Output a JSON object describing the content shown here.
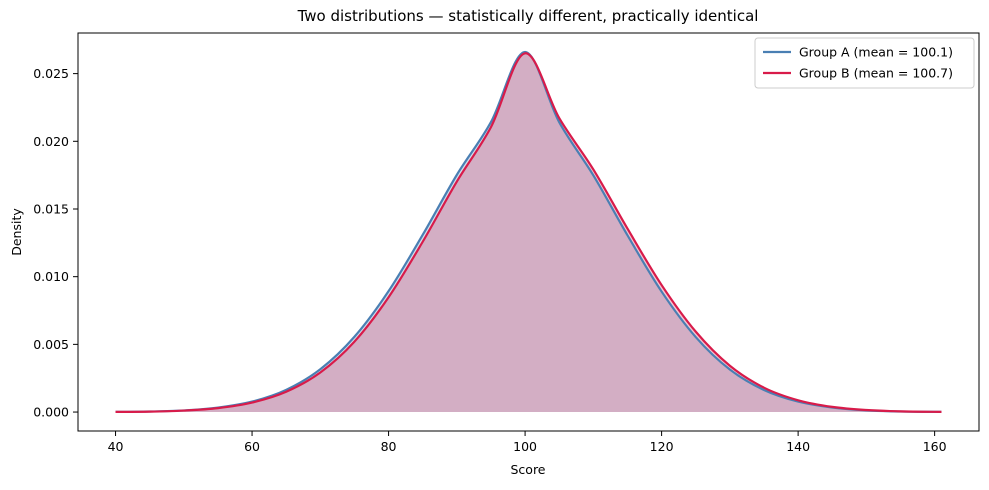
{
  "chart_data": {
    "type": "area",
    "title": "Two distributions — statistically different, practically identical",
    "xlabel": "Score",
    "ylabel": "Density",
    "xlim": [
      34.5,
      166.5
    ],
    "ylim": [
      -0.0014,
      0.028
    ],
    "xticks": [
      40,
      60,
      80,
      100,
      120,
      140,
      160
    ],
    "yticks": [
      0.0,
      0.005,
      0.01,
      0.015,
      0.02,
      0.025
    ],
    "ytick_labels": [
      "0.000",
      "0.005",
      "0.010",
      "0.015",
      "0.020",
      "0.025"
    ],
    "grid": false,
    "legend_position": "top-right",
    "series": [
      {
        "name": "Group A (mean = 100.1)",
        "color": "#4a7fb3",
        "x": [
          40,
          45,
          50,
          55,
          60,
          65,
          70,
          75,
          80,
          85,
          90,
          95,
          100,
          105,
          110,
          115,
          120,
          125,
          130,
          135,
          140,
          145,
          150,
          155,
          161
        ],
        "y": [
          1e-05,
          4e-05,
          0.00012,
          0.00033,
          0.00077,
          0.00164,
          0.00316,
          0.00556,
          0.00893,
          0.01309,
          0.01752,
          0.02142,
          0.0266,
          0.02141,
          0.01749,
          0.01306,
          0.0089,
          0.00554,
          0.00314,
          0.00163,
          0.00077,
          0.00033,
          0.00012,
          4e-05,
          1e-05
        ]
      },
      {
        "name": "Group B (mean = 100.7)",
        "color": "#d81b4a",
        "x": [
          40,
          45,
          50,
          55,
          60,
          65,
          70,
          75,
          80,
          85,
          90,
          95,
          100,
          105,
          110,
          115,
          120,
          125,
          130,
          135,
          140,
          145,
          150,
          155,
          161
        ],
        "y": [
          1e-05,
          3e-05,
          0.00011,
          0.00029,
          0.0007,
          0.0015,
          0.00292,
          0.0052,
          0.00848,
          0.01258,
          0.01703,
          0.02105,
          0.0265,
          0.02172,
          0.01792,
          0.01355,
          0.00938,
          0.00594,
          0.00342,
          0.0018,
          0.00087,
          0.00038,
          0.00015,
          5e-05,
          1e-05
        ]
      }
    ]
  }
}
